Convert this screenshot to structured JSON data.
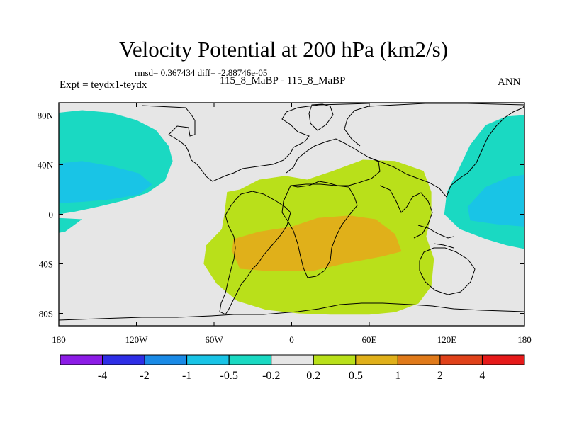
{
  "chart_data": {
    "type": "heatmap",
    "title": "Velocity Potential at 200 hPa (km2/s)",
    "stats": "rmsd= 0.367434 diff= -2.88746e-05",
    "experiment": "Expt = teydx1-teydx",
    "cases": "115_8_MaBP - 115_8_MaBP",
    "season": "ANN",
    "xlim": [
      -180,
      180
    ],
    "ylim": [
      -90,
      90
    ],
    "x_ticks": [
      {
        "value": -180,
        "label": "180"
      },
      {
        "value": -120,
        "label": "120W"
      },
      {
        "value": -60,
        "label": "60W"
      },
      {
        "value": 0,
        "label": "0"
      },
      {
        "value": 60,
        "label": "60E"
      },
      {
        "value": 120,
        "label": "120E"
      },
      {
        "value": 180,
        "label": "180"
      }
    ],
    "y_ticks": [
      {
        "value": 80,
        "label": "80N"
      },
      {
        "value": 40,
        "label": "40N"
      },
      {
        "value": 0,
        "label": "0"
      },
      {
        "value": -40,
        "label": "40S"
      },
      {
        "value": -80,
        "label": "80S"
      }
    ],
    "colorbar": {
      "levels": [
        "-4",
        "-2",
        "-1",
        "-0.5",
        "-0.2",
        "0.2",
        "0.5",
        "1",
        "2",
        "4"
      ],
      "colors": [
        "#8c1ce6",
        "#2e2ee6",
        "#1a8ae6",
        "#19c4e6",
        "#1ad9c2",
        "#e6e6e6",
        "#b9e01a",
        "#e0b01a",
        "#e07a1a",
        "#e0421a",
        "#e61a1a"
      ]
    },
    "regions": [
      {
        "name": "west-pacific-north",
        "range": "-0.5 to -0.2",
        "color_index": 4,
        "points": [
          [
            -180,
            82
          ],
          [
            -162,
            84
          ],
          [
            -140,
            82
          ],
          [
            -120,
            76
          ],
          [
            -105,
            68
          ],
          [
            -95,
            55
          ],
          [
            -92,
            43
          ],
          [
            -98,
            27
          ],
          [
            -112,
            17
          ],
          [
            -130,
            11
          ],
          [
            -150,
            6
          ],
          [
            -168,
            2
          ],
          [
            -180,
            0
          ]
        ]
      },
      {
        "name": "west-pacific-north-core",
        "range": "-1 to -0.5",
        "color_index": 3,
        "points": [
          [
            -180,
            41
          ],
          [
            -162,
            43
          ],
          [
            -140,
            39
          ],
          [
            -118,
            33
          ],
          [
            -108,
            24
          ],
          [
            -118,
            16
          ],
          [
            -140,
            12
          ],
          [
            -162,
            10
          ],
          [
            -180,
            9
          ]
        ]
      },
      {
        "name": "west-pacific-south",
        "range": "-0.5 to -0.2",
        "color_index": 4,
        "points": [
          [
            -180,
            -3
          ],
          [
            -162,
            -4
          ],
          [
            -175,
            -14
          ],
          [
            -180,
            -15
          ]
        ]
      },
      {
        "name": "east-pacific",
        "range": "-0.5 to -0.2",
        "color_index": 4,
        "points": [
          [
            180,
            80
          ],
          [
            166,
            79
          ],
          [
            150,
            72
          ],
          [
            138,
            56
          ],
          [
            128,
            34
          ],
          [
            120,
            18
          ],
          [
            118,
            0
          ],
          [
            130,
            -12
          ],
          [
            150,
            -20
          ],
          [
            166,
            -25
          ],
          [
            180,
            -28
          ]
        ]
      },
      {
        "name": "east-pacific-core",
        "range": "-1 to -0.5",
        "color_index": 3,
        "points": [
          [
            180,
            32
          ],
          [
            168,
            30
          ],
          [
            150,
            22
          ],
          [
            136,
            6
          ],
          [
            138,
            -5
          ],
          [
            158,
            -8
          ],
          [
            180,
            -10
          ]
        ]
      },
      {
        "name": "africa-indian-ocean",
        "range": "0.2 to 0.5",
        "color_index": 6,
        "points": [
          [
            -50,
            18
          ],
          [
            -40,
            20
          ],
          [
            -25,
            28
          ],
          [
            -5,
            31
          ],
          [
            12,
            28
          ],
          [
            32,
            35
          ],
          [
            55,
            44
          ],
          [
            80,
            43
          ],
          [
            102,
            35
          ],
          [
            108,
            18
          ],
          [
            108,
            0
          ],
          [
            104,
            -18
          ],
          [
            110,
            -36
          ],
          [
            108,
            -58
          ],
          [
            98,
            -72
          ],
          [
            80,
            -79
          ],
          [
            60,
            -81
          ],
          [
            30,
            -81
          ],
          [
            5,
            -80
          ],
          [
            -20,
            -77
          ],
          [
            -42,
            -70
          ],
          [
            -58,
            -56
          ],
          [
            -68,
            -40
          ],
          [
            -66,
            -25
          ],
          [
            -54,
            -12
          ],
          [
            -52,
            0
          ]
        ]
      },
      {
        "name": "africa-indian-core",
        "range": "0.5 to 1",
        "color_index": 7,
        "points": [
          [
            -45,
            -20
          ],
          [
            -25,
            -14
          ],
          [
            0,
            -10
          ],
          [
            20,
            -3
          ],
          [
            45,
            -1
          ],
          [
            65,
            -4
          ],
          [
            80,
            -16
          ],
          [
            85,
            -30
          ],
          [
            70,
            -34
          ],
          [
            40,
            -40
          ],
          [
            15,
            -46
          ],
          [
            -15,
            -46
          ],
          [
            -40,
            -44
          ],
          [
            -46,
            -30
          ]
        ]
      }
    ]
  }
}
